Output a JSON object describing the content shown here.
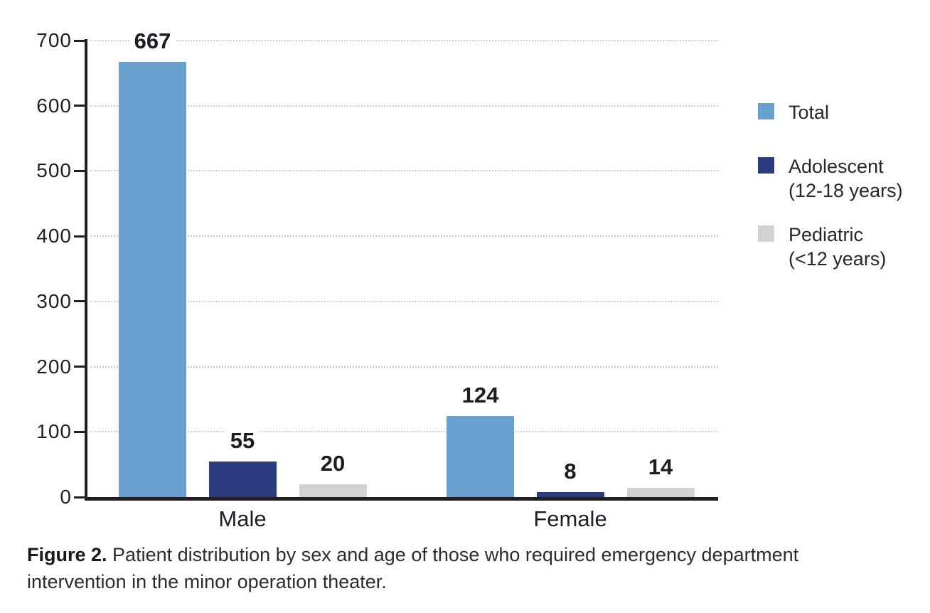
{
  "caption": {
    "label": "Figure 2.",
    "lines": [
      "Patient distribution by sex and age of those who required emergency department",
      "intervention in the minor operation theater."
    ]
  },
  "colors": {
    "total": "#69a2d1",
    "adolescent": "#2b3c7e",
    "pediatric": "#d1d3d4",
    "axis": "#231f20",
    "gridline": "#c9cbcd"
  },
  "chart_data": {
    "type": "bar",
    "title": "",
    "xlabel": "",
    "ylabel": "",
    "categories": [
      "Male",
      "Female"
    ],
    "series": [
      {
        "key": "total",
        "name": "Total",
        "color": "#69a2d1",
        "values": [
          667,
          124
        ]
      },
      {
        "key": "adolescent",
        "name": "Adolescent (12-18 years)",
        "color": "#2b3c7e",
        "values": [
          55,
          8
        ]
      },
      {
        "key": "pediatric",
        "name": "Pediatric (<12 years)",
        "color": "#d1d3d4",
        "values": [
          20,
          14
        ]
      }
    ],
    "ylim": [
      0,
      700
    ],
    "yticks": [
      0,
      100,
      200,
      300,
      400,
      500,
      600,
      700
    ],
    "grid": "horizontal-dotted",
    "bar_value_labels": true,
    "legend_position": "right",
    "legend": [
      {
        "key": "total",
        "lines": [
          "Total"
        ],
        "color": "#69a2d1"
      },
      {
        "key": "adolescent",
        "lines": [
          "Adolescent",
          "(12-18 years)"
        ],
        "color": "#2b3c7e"
      },
      {
        "key": "pediatric",
        "lines": [
          "Pediatric",
          "(<12 years)"
        ],
        "color": "#d1d3d4"
      }
    ]
  }
}
